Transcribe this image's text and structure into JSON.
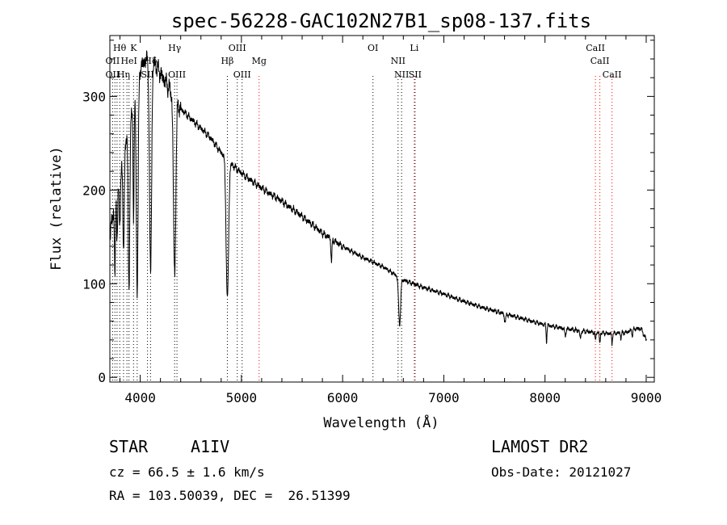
{
  "chart_data": {
    "type": "line",
    "title": "spec-56228-GAC102N27B1_sp08-137.fits",
    "xlabel": "Wavelength (Å)",
    "ylabel": "Flux (relative)",
    "xlim": [
      3700,
      9080
    ],
    "ylim": [
      -5,
      365
    ],
    "xticks": [
      4000,
      5000,
      6000,
      7000,
      8000,
      9000
    ],
    "yticks": [
      0,
      100,
      200,
      300
    ],
    "grid": false,
    "continuum": [
      [
        3700,
        150
      ],
      [
        3750,
        190
      ],
      [
        3800,
        225
      ],
      [
        3850,
        250
      ],
      [
        3900,
        275
      ],
      [
        3950,
        305
      ],
      [
        4000,
        330
      ],
      [
        4050,
        340
      ],
      [
        4100,
        338
      ],
      [
        4150,
        333
      ],
      [
        4200,
        325
      ],
      [
        4250,
        316
      ],
      [
        4300,
        305
      ],
      [
        4350,
        295
      ],
      [
        4400,
        287
      ],
      [
        4500,
        276
      ],
      [
        4600,
        266
      ],
      [
        4700,
        255
      ],
      [
        4800,
        240
      ],
      [
        4900,
        228
      ],
      [
        5000,
        218
      ],
      [
        5100,
        210
      ],
      [
        5200,
        202
      ],
      [
        5300,
        195
      ],
      [
        5400,
        188
      ],
      [
        5500,
        180
      ],
      [
        5600,
        172
      ],
      [
        5700,
        163
      ],
      [
        5800,
        154
      ],
      [
        5900,
        147
      ],
      [
        6000,
        140
      ],
      [
        6200,
        128
      ],
      [
        6400,
        118
      ],
      [
        6500,
        111
      ],
      [
        6600,
        104
      ],
      [
        6800,
        96
      ],
      [
        7000,
        89
      ],
      [
        7200,
        81
      ],
      [
        7400,
        74
      ],
      [
        7600,
        68
      ],
      [
        7800,
        62
      ],
      [
        8000,
        56
      ],
      [
        8200,
        52
      ],
      [
        8400,
        49
      ],
      [
        8500,
        48
      ],
      [
        8600,
        47
      ],
      [
        8700,
        47
      ],
      [
        8800,
        48
      ],
      [
        8900,
        52
      ],
      [
        8950,
        52
      ],
      [
        9000,
        40
      ]
    ],
    "absorption": [
      {
        "w": 3750,
        "depth": 80,
        "width": 5
      },
      {
        "w": 3771,
        "depth": 60,
        "width": 5
      },
      {
        "w": 3798,
        "depth": 70,
        "width": 6
      },
      {
        "w": 3835,
        "depth": 110,
        "width": 7
      },
      {
        "w": 3889,
        "depth": 170,
        "width": 8
      },
      {
        "w": 3934,
        "depth": 130,
        "width": 5
      },
      {
        "w": 3970,
        "depth": 220,
        "width": 9
      },
      {
        "w": 4102,
        "depth": 230,
        "width": 10
      },
      {
        "w": 4340,
        "depth": 190,
        "width": 11
      },
      {
        "w": 4861,
        "depth": 150,
        "width": 12
      },
      {
        "w": 5890,
        "depth": 25,
        "width": 5
      },
      {
        "w": 6563,
        "depth": 50,
        "width": 10
      },
      {
        "w": 7605,
        "depth": 8,
        "width": 8
      },
      {
        "w": 8015,
        "depth": 18,
        "width": 4
      },
      {
        "w": 8200,
        "depth": 8,
        "width": 6
      },
      {
        "w": 8350,
        "depth": 8,
        "width": 6
      },
      {
        "w": 8498,
        "depth": 10,
        "width": 4
      },
      {
        "w": 8542,
        "depth": 12,
        "width": 4
      },
      {
        "w": 8662,
        "depth": 12,
        "width": 4
      },
      {
        "w": 8750,
        "depth": 6,
        "width": 4
      },
      {
        "w": 8863,
        "depth": 6,
        "width": 4
      }
    ],
    "line_markers": [
      {
        "w": 3727,
        "color": "#000000"
      },
      {
        "w": 3750,
        "color": "#000000"
      },
      {
        "w": 3771,
        "color": "#000000"
      },
      {
        "w": 3798,
        "color": "#000000"
      },
      {
        "w": 3835,
        "color": "#000000"
      },
      {
        "w": 3869,
        "color": "#000000"
      },
      {
        "w": 3889,
        "color": "#000000"
      },
      {
        "w": 3934,
        "color": "#000000"
      },
      {
        "w": 3970,
        "color": "#000000"
      },
      {
        "w": 4072,
        "color": "#000000"
      },
      {
        "w": 4102,
        "color": "#000000"
      },
      {
        "w": 4340,
        "color": "#000000"
      },
      {
        "w": 4363,
        "color": "#000000"
      },
      {
        "w": 4861,
        "color": "#000000"
      },
      {
        "w": 4959,
        "color": "#000000"
      },
      {
        "w": 5007,
        "color": "#000000"
      },
      {
        "w": 5175,
        "color": "#ff0000"
      },
      {
        "w": 6300,
        "color": "#000000"
      },
      {
        "w": 6548,
        "color": "#000000"
      },
      {
        "w": 6583,
        "color": "#000000"
      },
      {
        "w": 6708,
        "color": "#ff0000"
      },
      {
        "w": 6716,
        "color": "#000000"
      },
      {
        "w": 8498,
        "color": "#ff0000"
      },
      {
        "w": 8542,
        "color": "#ff0000"
      },
      {
        "w": 8662,
        "color": "#ff0000"
      }
    ],
    "line_labels": [
      {
        "text": "Hθ",
        "w": 3797,
        "row": 1
      },
      {
        "text": "K",
        "w": 3934,
        "row": 1
      },
      {
        "text": "Hγ",
        "w": 4340,
        "row": 1
      },
      {
        "text": "OIII",
        "w": 4959,
        "row": 1
      },
      {
        "text": "OI",
        "w": 6300,
        "row": 1
      },
      {
        "text": "Li",
        "w": 6708,
        "row": 1
      },
      {
        "text": "CaII",
        "w": 8498,
        "row": 1
      },
      {
        "text": "OII",
        "w": 3727,
        "row": 2
      },
      {
        "text": "HeI",
        "w": 3889,
        "row": 2
      },
      {
        "text": "Hδ",
        "w": 4102,
        "row": 2
      },
      {
        "text": "Hβ",
        "w": 4861,
        "row": 2
      },
      {
        "text": "Mg",
        "w": 5175,
        "row": 2
      },
      {
        "text": "NII",
        "w": 6548,
        "row": 2
      },
      {
        "text": "CaII",
        "w": 8542,
        "row": 2
      },
      {
        "text": "OII",
        "w": 3727,
        "row": 3
      },
      {
        "text": "Hη",
        "w": 3835,
        "row": 3
      },
      {
        "text": "SII",
        "w": 4072,
        "row": 3
      },
      {
        "text": "OIII",
        "w": 4363,
        "row": 3
      },
      {
        "text": "OIII",
        "w": 5007,
        "row": 3
      },
      {
        "text": "NII",
        "w": 6583,
        "row": 3
      },
      {
        "text": "SII",
        "w": 6716,
        "row": 3
      },
      {
        "text": "CaII",
        "w": 8662,
        "row": 3
      }
    ]
  },
  "info": {
    "object_type": "STAR",
    "subclass": "A1IV",
    "survey": "LAMOST DR2",
    "redshift": "cz = 66.5 ± 1.6 km/s",
    "obs_date": "Obs-Date: 20121027",
    "coords": "RA = 103.50039, DEC =  26.51399"
  }
}
